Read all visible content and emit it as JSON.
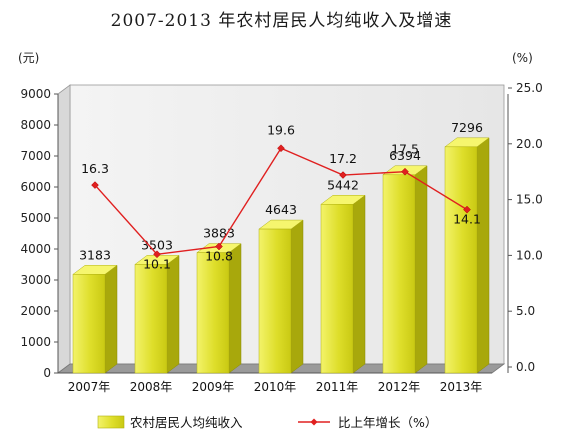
{
  "chart_data": {
    "type": "bar",
    "title": "2007-2013 年农村居民人均纯收入及增速",
    "y_unit_left": "(元)",
    "y_unit_right": "(%)",
    "categories": [
      "2007年",
      "2008年",
      "2009年",
      "2010年",
      "2011年",
      "2012年",
      "2013年"
    ],
    "series": [
      {
        "name": "农村居民人均纯收入",
        "type": "bar",
        "axis": "left",
        "color": "#dede2a",
        "values": [
          3183,
          3503,
          3883,
          4643,
          5442,
          6394,
          7296
        ]
      },
      {
        "name": "比上年增长（%）",
        "type": "line",
        "axis": "right",
        "color": "#e02020",
        "values": [
          16.3,
          10.1,
          10.8,
          19.6,
          17.2,
          17.5,
          14.1
        ]
      }
    ],
    "ylim_left": [
      0,
      9000
    ],
    "ylim_right": [
      0,
      25
    ],
    "left_ticks": [
      "0",
      "1000",
      "2000",
      "3000",
      "4000",
      "5000",
      "6000",
      "7000",
      "8000",
      "9000"
    ],
    "right_ticks": [
      "0.0",
      "5.0",
      "10.0",
      "15.0",
      "20.0",
      "25.0"
    ],
    "grid": false,
    "legend_position": "bottom"
  }
}
